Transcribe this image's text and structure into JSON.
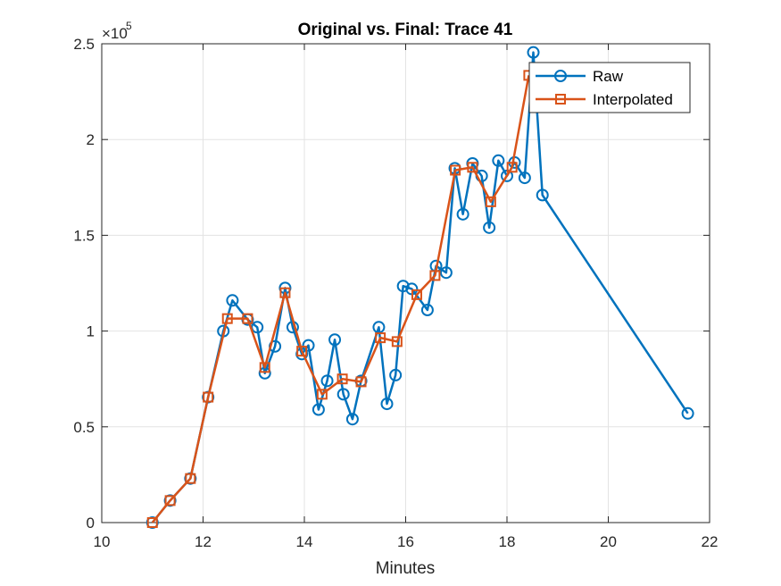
{
  "chart_data": {
    "type": "line",
    "title": "Original vs. Final: Trace 41",
    "xlabel": "Minutes",
    "ylabel": "",
    "xlim": [
      10,
      22
    ],
    "ylim": [
      0,
      250000
    ],
    "x_ticks": [
      10,
      12,
      14,
      16,
      18,
      20,
      22
    ],
    "y_ticks": [
      0,
      50000,
      100000,
      150000,
      200000,
      250000
    ],
    "x_tick_labels": [
      "10",
      "12",
      "14",
      "16",
      "18",
      "20",
      "22"
    ],
    "y_tick_labels": [
      "0",
      "0.5",
      "1",
      "1.5",
      "2",
      "2.5"
    ],
    "y_exponent_base": "×10",
    "y_exponent_power": "5",
    "grid": true,
    "legend_position": "top-right",
    "series": [
      {
        "name": "Raw",
        "color": "#0072BD",
        "marker": "circle",
        "x": [
          11.0,
          11.35,
          11.75,
          12.1,
          12.4,
          12.58,
          12.88,
          13.07,
          13.22,
          13.42,
          13.62,
          13.77,
          13.95,
          14.08,
          14.28,
          14.45,
          14.6,
          14.77,
          14.95,
          15.12,
          15.47,
          15.63,
          15.8,
          15.95,
          16.12,
          16.43,
          16.6,
          16.8,
          16.97,
          17.13,
          17.32,
          17.5,
          17.65,
          17.83,
          18.0,
          18.15,
          18.35,
          18.52,
          18.7,
          21.57
        ],
        "y": [
          0,
          11500,
          23000,
          65500,
          100000,
          116000,
          106000,
          102000,
          78000,
          92000,
          122500,
          102000,
          88000,
          92500,
          59000,
          74000,
          95500,
          67000,
          54000,
          74000,
          102000,
          62000,
          77000,
          123500,
          122000,
          111000,
          134000,
          130500,
          185000,
          161000,
          187500,
          181000,
          154000,
          189000,
          181000,
          188000,
          180000,
          245500,
          171000,
          57000
        ]
      },
      {
        "name": "Interpolated",
        "color": "#D95319",
        "marker": "square",
        "x": [
          11.0,
          11.35,
          11.75,
          12.1,
          12.48,
          12.88,
          13.22,
          13.62,
          13.95,
          14.35,
          14.75,
          15.12,
          15.5,
          15.83,
          16.22,
          16.58,
          16.98,
          17.32,
          17.68,
          18.1,
          18.43
        ],
        "y": [
          0,
          11500,
          23000,
          65500,
          106500,
          106500,
          81000,
          120000,
          89500,
          67000,
          75000,
          73500,
          96500,
          94500,
          119000,
          129000,
          184000,
          185500,
          167500,
          185500,
          233500
        ]
      }
    ]
  }
}
